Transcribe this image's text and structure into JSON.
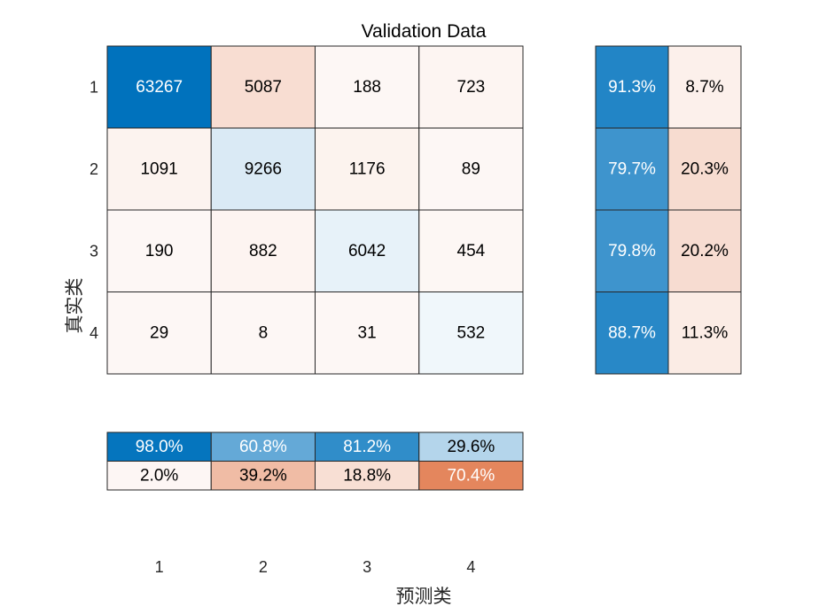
{
  "chart_data": {
    "type": "heatmap",
    "title": "Validation Data",
    "xlabel": "预测类",
    "ylabel": "真实类",
    "classes": [
      "1",
      "2",
      "3",
      "4"
    ],
    "matrix": [
      [
        63267,
        5087,
        188,
        723
      ],
      [
        1091,
        9266,
        1176,
        89
      ],
      [
        190,
        882,
        6042,
        454
      ],
      [
        29,
        8,
        31,
        532
      ]
    ],
    "row_summary": [
      [
        "91.3%",
        "8.7%"
      ],
      [
        "79.7%",
        "20.3%"
      ],
      [
        "79.8%",
        "20.2%"
      ],
      [
        "88.7%",
        "11.3%"
      ]
    ],
    "column_summary": [
      [
        "98.0%",
        "60.8%",
        "81.2%",
        "29.6%"
      ],
      [
        "2.0%",
        "39.2%",
        "18.8%",
        "70.4%"
      ]
    ],
    "colors": {
      "correct": "#0072BD",
      "incorrect": "#D95319",
      "light": "#FFFFFF",
      "text_dark": "#000000",
      "text_light": "#FFFFFF"
    }
  }
}
